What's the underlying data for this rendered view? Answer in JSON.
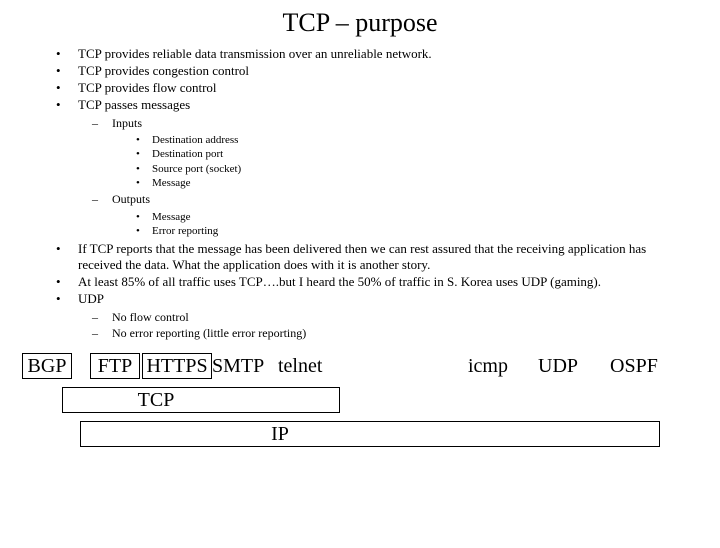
{
  "title": "TCP – purpose",
  "bullets": {
    "b1": "TCP provides reliable data transmission over an unreliable network.",
    "b2": "TCP provides congestion control",
    "b3": "TCP provides flow control",
    "b4": "TCP passes messages",
    "b4_inputs_label": "Inputs",
    "b4_in1": "Destination address",
    "b4_in2": "Destination port",
    "b4_in3": "Source port (socket)",
    "b4_in4": "Message",
    "b4_outputs_label": "Outputs",
    "b4_out1": "Message",
    "b4_out2": "Error reporting",
    "b5": "If TCP reports that the message has been delivered then we can rest assured that the receiving application has received the data. What the application does with it is another story.",
    "b6": "At least 85% of all traffic uses TCP….but I heard the 50% of traffic in S. Korea uses UDP (gaming).",
    "b7": "UDP",
    "b7_s1": "No flow control",
    "b7_s2": "No error reporting (little error reporting)"
  },
  "boxes": {
    "bgp": "BGP",
    "ftp": "FTP",
    "https": "HTTPS",
    "smtp": "SMTP",
    "telnet": "telnet",
    "icmp": "icmp",
    "udp": "UDP",
    "ospf": "OSPF",
    "tcp": "TCP",
    "ip": "IP"
  }
}
